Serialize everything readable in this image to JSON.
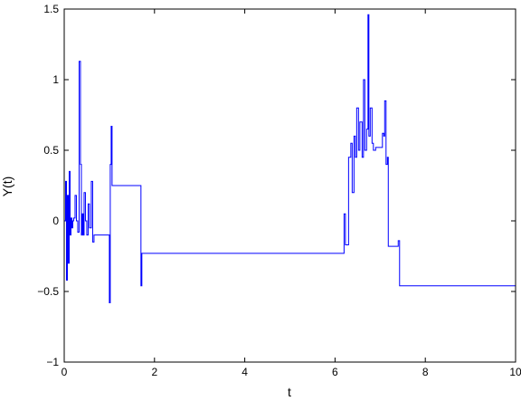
{
  "chart_data": {
    "type": "line",
    "title": "",
    "xlabel": "t",
    "ylabel": "Y(t)",
    "xlim": [
      0,
      10
    ],
    "ylim": [
      -1,
      1.5
    ],
    "xticks": [
      0,
      2,
      4,
      6,
      8,
      10
    ],
    "yticks": [
      -1,
      -0.5,
      0,
      0.5,
      1,
      1.5
    ],
    "xtick_labels": [
      "0",
      "2",
      "4",
      "6",
      "8",
      "10"
    ],
    "ytick_labels": [
      "−1",
      "−0.5",
      "0",
      "0.5",
      "1",
      "1.5"
    ],
    "grid": false,
    "line_color": "#0000ff",
    "series": [
      {
        "step": true,
        "x": [
          0,
          0.03,
          0.05,
          0.07,
          0.09,
          0.11,
          0.13,
          0.15,
          0.17,
          0.19,
          0.21,
          0.24,
          0.27,
          0.3,
          0.33,
          0.36,
          0.38,
          0.4,
          0.42,
          0.44,
          0.47,
          0.5,
          0.53,
          0.56,
          0.6,
          0.63,
          0.66,
          0.69,
          0.72,
          0.75,
          0.8,
          0.88,
          0.95,
          1.0,
          1.02,
          1.04,
          1.06,
          1.08,
          1.6,
          1.7,
          1.72,
          6.15,
          6.2,
          6.23,
          6.3,
          6.35,
          6.38,
          6.42,
          6.45,
          6.48,
          6.52,
          6.55,
          6.6,
          6.63,
          6.66,
          6.7,
          6.73,
          6.75,
          6.78,
          6.82,
          6.85,
          6.9,
          7.0,
          7.05,
          7.08,
          7.1,
          7.13,
          7.16,
          7.18,
          7.21,
          7.25,
          7.3,
          7.4,
          7.43,
          8.0,
          10.0
        ],
        "y": [
          0.0,
          0.28,
          -0.42,
          0.18,
          -0.3,
          0.35,
          -0.1,
          0.02,
          -0.05,
          0.0,
          0.02,
          0.18,
          0.0,
          -0.08,
          1.13,
          0.4,
          -0.1,
          0.05,
          -0.1,
          0.2,
          0.0,
          -0.1,
          0.12,
          -0.05,
          0.28,
          -0.15,
          -0.1,
          -0.1,
          -0.1,
          -0.1,
          -0.1,
          -0.1,
          -0.1,
          -0.58,
          0.4,
          0.67,
          0.25,
          0.25,
          0.25,
          -0.46,
          -0.23,
          -0.23,
          0.05,
          -0.17,
          0.45,
          0.55,
          0.2,
          0.6,
          0.45,
          0.8,
          0.5,
          0.7,
          0.45,
          1.0,
          0.5,
          0.65,
          1.46,
          0.6,
          0.8,
          0.55,
          0.5,
          0.52,
          0.52,
          0.62,
          0.6,
          0.85,
          0.4,
          0.45,
          -0.18,
          -0.18,
          -0.18,
          -0.18,
          -0.14,
          -0.46,
          -0.46,
          0.0
        ]
      }
    ]
  }
}
